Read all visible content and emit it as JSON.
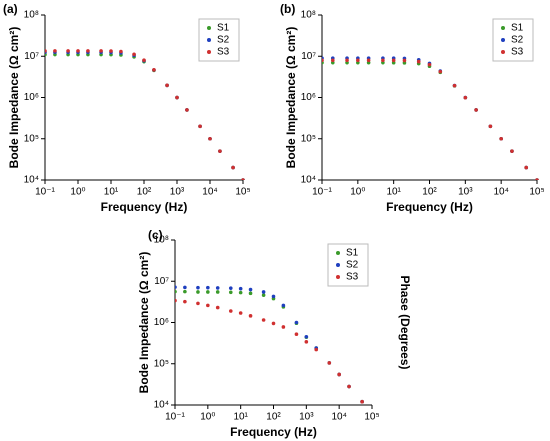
{
  "chart_data": [
    {
      "type": "scatter",
      "panel_label": "(a)",
      "xlabel": "Frequency (Hz)",
      "ylabel": "Bode Impedance (Ω cm²)",
      "x": [
        0.1,
        0.2,
        0.5,
        1,
        2,
        5,
        10,
        20,
        50,
        100,
        200,
        500,
        1000,
        2000,
        5000,
        10000,
        20000,
        50000,
        100000
      ],
      "series": [
        {
          "name": "S1",
          "color": "#3a9a2a",
          "values": [
            11000000.0,
            11000000.0,
            11000000.0,
            11000000.0,
            11000000.0,
            11000000.0,
            10930000.0,
            10740000.0,
            9640000.0,
            7400000.0,
            4550000.0,
            1970000.0,
            996000.0,
            500000.0,
            200000.0,
            100000.0,
            50000.0,
            20000.0,
            10000.0
          ]
        },
        {
          "name": "S2",
          "color": "#1f3fbf",
          "values": [
            12500000.0,
            12500000.0,
            12500000.0,
            12500000.0,
            12500000.0,
            12500000.0,
            12400000.0,
            12100000.0,
            10600000.0,
            7800000.0,
            4640000.0,
            1970000.0,
            997000.0,
            500000.0,
            200000.0,
            100000.0,
            50000.0,
            20000.0,
            10000.0
          ]
        },
        {
          "name": "S3",
          "color": "#d03030",
          "values": [
            13500000.0,
            13500000.0,
            13500000.0,
            13500000.0,
            13500000.0,
            13500000.0,
            13380000.0,
            13030000.0,
            11180000.0,
            8040000.0,
            4690000.0,
            1980000.0,
            997000.0,
            500000.0,
            200000.0,
            100000.0,
            50000.0,
            20000.0,
            10000.0
          ]
        }
      ],
      "xlim": [
        0.1,
        100000
      ],
      "ylim": [
        10000,
        100000000
      ],
      "log_x": true,
      "log_y": true,
      "legend": "upper right",
      "xticks": [
        {
          "value": 0.1,
          "label": "10⁻¹"
        },
        {
          "value": 1,
          "label": "10⁰"
        },
        {
          "value": 10,
          "label": "10¹"
        },
        {
          "value": 100,
          "label": "10²"
        },
        {
          "value": 1000,
          "label": "10³"
        },
        {
          "value": 10000,
          "label": "10⁴"
        },
        {
          "value": 100000,
          "label": "10⁵"
        }
      ],
      "yticks": [
        {
          "value": 10000,
          "label": "10⁴"
        },
        {
          "value": 100000,
          "label": "10⁵"
        },
        {
          "value": 1000000,
          "label": "10⁶"
        },
        {
          "value": 10000000,
          "label": "10⁷"
        },
        {
          "value": 100000000,
          "label": "10⁸"
        }
      ]
    },
    {
      "type": "scatter",
      "panel_label": "(b)",
      "xlabel": "Frequency (Hz)",
      "ylabel": "Bode Impedance (Ω cm²)",
      "x": [
        0.1,
        0.2,
        0.5,
        1,
        2,
        5,
        10,
        20,
        50,
        100,
        200,
        500,
        1000,
        2000,
        5000,
        10000,
        20000,
        50000,
        100000
      ],
      "series": [
        {
          "name": "S1",
          "color": "#3a9a2a",
          "values": [
            7000000.0,
            7000000.0,
            7000000.0,
            7000000.0,
            7000000.0,
            7000000.0,
            6980000.0,
            6930000.0,
            6610000.0,
            5730000.0,
            4070000.0,
            1920000.0,
            990000.0,
            500000.0,
            200000.0,
            100000.0,
            50000.0,
            20000.0,
            10000.0
          ]
        },
        {
          "name": "S2",
          "color": "#1f3fbf",
          "values": [
            9000000.0,
            9000000.0,
            9000000.0,
            9000000.0,
            9000000.0,
            9000000.0,
            8960000.0,
            8860000.0,
            8210000.0,
            6690000.0,
            4370000.0,
            1950000.0,
            994000.0,
            500000.0,
            200000.0,
            100000.0,
            50000.0,
            20000.0,
            10000.0
          ]
        },
        {
          "name": "S3",
          "color": "#d03030",
          "values": [
            8000000.0,
            8000000.0,
            8000000.0,
            8000000.0,
            8000000.0,
            8000000.0,
            7970000.0,
            7900000.0,
            7430000.0,
            6250000.0,
            4240000.0,
            1940000.0,
            992000.0,
            500000.0,
            200000.0,
            100000.0,
            50000.0,
            20000.0,
            10000.0
          ]
        }
      ],
      "xlim": [
        0.1,
        100000
      ],
      "ylim": [
        10000,
        100000000
      ],
      "log_x": true,
      "log_y": true,
      "legend": "upper right",
      "xticks": [
        {
          "value": 0.1,
          "label": "10⁻¹"
        },
        {
          "value": 1,
          "label": "10⁰"
        },
        {
          "value": 10,
          "label": "10¹"
        },
        {
          "value": 100,
          "label": "10²"
        },
        {
          "value": 1000,
          "label": "10³"
        },
        {
          "value": 10000,
          "label": "10⁴"
        },
        {
          "value": 100000,
          "label": "10⁵"
        }
      ],
      "yticks": [
        {
          "value": 10000,
          "label": "10⁴"
        },
        {
          "value": 100000,
          "label": "10⁵"
        },
        {
          "value": 1000000,
          "label": "10⁶"
        },
        {
          "value": 10000000,
          "label": "10⁷"
        },
        {
          "value": 100000000,
          "label": "10⁸"
        }
      ]
    },
    {
      "type": "scatter",
      "panel_label": "(c)",
      "xlabel": "Frequency (Hz)",
      "ylabel": "Bode Impedance (Ω cm²)",
      "y2label": "Phase (Degrees)",
      "x": [
        0.1,
        0.2,
        0.5,
        1,
        2,
        5,
        10,
        20,
        50,
        100,
        200,
        500,
        1000,
        2000,
        5000,
        10000,
        20000,
        50000,
        100000
      ],
      "series": [
        {
          "name": "S1",
          "color": "#3a9a2a",
          "values": [
            5600000.0,
            5600000.0,
            5500000.0,
            5500000.0,
            5500000.0,
            5400000.0,
            5300000.0,
            5100000.0,
            4600000.0,
            3800000.0,
            2400000.0,
            960000.0,
            440000.0,
            240000.0,
            105000.0,
            55000.0,
            28000.0,
            12000.0,
            6500.0
          ]
        },
        {
          "name": "S2",
          "color": "#1f3fbf",
          "values": [
            7200000.0,
            7100000.0,
            7000000.0,
            7000000.0,
            6900000.0,
            6800000.0,
            6600000.0,
            6300000.0,
            5500000.0,
            4300000.0,
            2600000.0,
            1000000.0,
            450000.0,
            240000.0,
            105000.0,
            55000.0,
            28000.0,
            12000.0,
            6500.0
          ]
        },
        {
          "name": "S3",
          "color": "#d03030",
          "values": [
            3400000.0,
            3200000.0,
            2900000.0,
            2600000.0,
            2300000.0,
            1900000.0,
            1700000.0,
            1450000.0,
            1150000.0,
            950000.0,
            780000.0,
            520000.0,
            340000.0,
            220000.0,
            105000.0,
            55000.0,
            28000.0,
            12000.0,
            6500.0
          ]
        }
      ],
      "xlim": [
        0.1,
        100000
      ],
      "ylim": [
        10000,
        100000000
      ],
      "log_x": true,
      "log_y": true,
      "legend": "upper right",
      "xticks": [
        {
          "value": 0.1,
          "label": "10⁻¹"
        },
        {
          "value": 1,
          "label": "10⁰"
        },
        {
          "value": 10,
          "label": "10¹"
        },
        {
          "value": 100,
          "label": "10²"
        },
        {
          "value": 1000,
          "label": "10³"
        },
        {
          "value": 10000,
          "label": "10⁴"
        },
        {
          "value": 100000,
          "label": "10⁵"
        }
      ],
      "yticks": [
        {
          "value": 10000,
          "label": "10⁴"
        },
        {
          "value": 100000,
          "label": "10⁵"
        },
        {
          "value": 1000000,
          "label": "10⁶"
        },
        {
          "value": 10000000,
          "label": "10⁷"
        },
        {
          "value": 100000000,
          "label": "10⁸"
        }
      ]
    }
  ]
}
